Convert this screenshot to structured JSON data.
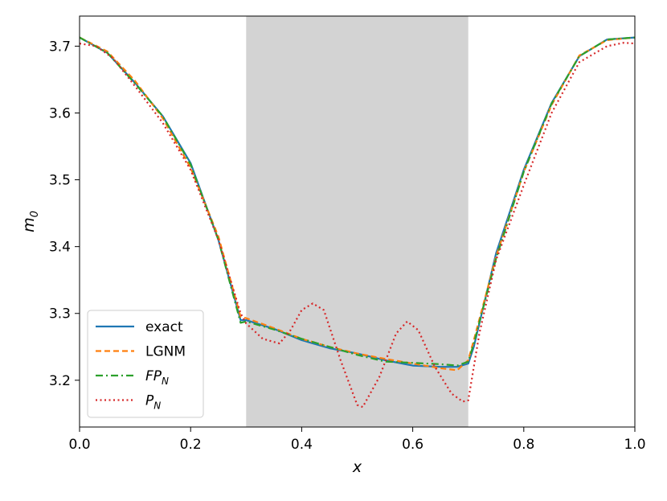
{
  "chart_data": {
    "type": "line",
    "xlabel": "x",
    "ylabel_main": "m",
    "ylabel_sub": "0",
    "xlim": [
      0.0,
      1.0
    ],
    "ylim": [
      3.13,
      3.745
    ],
    "grid": false,
    "legend_placement": "lower-left",
    "shaded_region": {
      "x_start": 0.3,
      "x_end": 0.7,
      "color": "#d3d3d3"
    },
    "x_ticks": [
      {
        "value": 0.0,
        "label": "0.0"
      },
      {
        "value": 0.2,
        "label": "0.2"
      },
      {
        "value": 0.4,
        "label": "0.4"
      },
      {
        "value": 0.6,
        "label": "0.6"
      },
      {
        "value": 0.8,
        "label": "0.8"
      },
      {
        "value": 1.0,
        "label": "1.0"
      }
    ],
    "y_ticks": [
      {
        "value": 3.2,
        "label": "3.2"
      },
      {
        "value": 3.3,
        "label": "3.3"
      },
      {
        "value": 3.4,
        "label": "3.4"
      },
      {
        "value": 3.5,
        "label": "3.5"
      },
      {
        "value": 3.6,
        "label": "3.6"
      },
      {
        "value": 3.7,
        "label": "3.7"
      }
    ],
    "series": [
      {
        "name": "exact",
        "legend_main": "exact",
        "legend_sub": "",
        "color": "#1f77b4",
        "style": "solid",
        "x": [
          0.0,
          0.05,
          0.1,
          0.15,
          0.2,
          0.25,
          0.29,
          0.3,
          0.35,
          0.4,
          0.45,
          0.5,
          0.55,
          0.6,
          0.65,
          0.68,
          0.7,
          0.71,
          0.75,
          0.8,
          0.85,
          0.9,
          0.95,
          1.0
        ],
        "y": [
          3.713,
          3.69,
          3.645,
          3.595,
          3.525,
          3.41,
          3.29,
          3.29,
          3.277,
          3.26,
          3.248,
          3.24,
          3.23,
          3.222,
          3.22,
          3.22,
          3.225,
          3.25,
          3.39,
          3.515,
          3.615,
          3.685,
          3.71,
          3.713
        ]
      },
      {
        "name": "LGNM",
        "legend_main": "LGNM",
        "legend_sub": "",
        "color": "#ff7f0e",
        "style": "dashed",
        "x": [
          0.0,
          0.05,
          0.1,
          0.15,
          0.2,
          0.25,
          0.29,
          0.3,
          0.35,
          0.4,
          0.45,
          0.5,
          0.55,
          0.6,
          0.65,
          0.68,
          0.7,
          0.71,
          0.75,
          0.8,
          0.85,
          0.9,
          0.95,
          1.0
        ],
        "y": [
          3.713,
          3.692,
          3.648,
          3.592,
          3.518,
          3.415,
          3.295,
          3.293,
          3.278,
          3.262,
          3.25,
          3.24,
          3.232,
          3.225,
          3.218,
          3.215,
          3.23,
          3.26,
          3.385,
          3.512,
          3.612,
          3.686,
          3.709,
          3.713
        ]
      },
      {
        "name": "FP_N",
        "legend_main": "FP",
        "legend_sub": "N",
        "color": "#2ca02c",
        "style": "dashdot",
        "x": [
          0.0,
          0.05,
          0.1,
          0.15,
          0.2,
          0.25,
          0.29,
          0.3,
          0.35,
          0.4,
          0.45,
          0.5,
          0.55,
          0.6,
          0.65,
          0.68,
          0.7,
          0.71,
          0.75,
          0.8,
          0.85,
          0.9,
          0.95,
          1.0
        ],
        "y": [
          3.713,
          3.69,
          3.644,
          3.595,
          3.523,
          3.41,
          3.286,
          3.288,
          3.276,
          3.262,
          3.25,
          3.238,
          3.228,
          3.226,
          3.224,
          3.222,
          3.228,
          3.255,
          3.382,
          3.512,
          3.614,
          3.685,
          3.71,
          3.713
        ]
      },
      {
        "name": "P_N",
        "legend_main": "P",
        "legend_sub": "N",
        "color": "#d62728",
        "style": "dotted",
        "x": [
          0.0,
          0.03,
          0.06,
          0.1,
          0.15,
          0.2,
          0.25,
          0.29,
          0.3,
          0.33,
          0.36,
          0.38,
          0.4,
          0.42,
          0.44,
          0.47,
          0.5,
          0.51,
          0.54,
          0.57,
          0.59,
          0.61,
          0.64,
          0.67,
          0.69,
          0.7,
          0.72,
          0.75,
          0.8,
          0.85,
          0.9,
          0.95,
          0.98,
          1.0
        ],
        "y": [
          3.704,
          3.7,
          3.682,
          3.64,
          3.585,
          3.515,
          3.41,
          3.3,
          3.285,
          3.262,
          3.255,
          3.275,
          3.305,
          3.315,
          3.305,
          3.23,
          3.163,
          3.16,
          3.205,
          3.27,
          3.288,
          3.275,
          3.22,
          3.18,
          3.168,
          3.17,
          3.27,
          3.38,
          3.492,
          3.6,
          3.676,
          3.7,
          3.705,
          3.704
        ]
      }
    ]
  }
}
